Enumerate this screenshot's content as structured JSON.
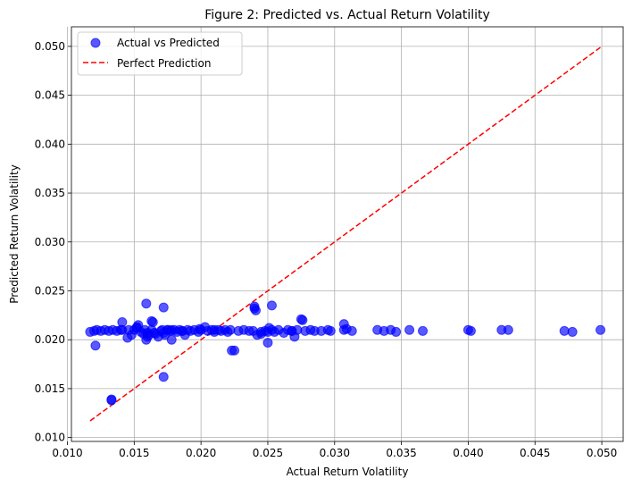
{
  "chart_data": {
    "type": "scatter",
    "title": "Figure 2: Predicted vs. Actual Return Volatility",
    "xlabel": "Actual Return Volatility",
    "ylabel": "Predicted Return Volatility",
    "xlim": [
      0.0103,
      0.0516
    ],
    "ylim": [
      0.0096,
      0.052
    ],
    "xticks": [
      "0.010",
      "0.015",
      "0.020",
      "0.025",
      "0.030",
      "0.035",
      "0.040",
      "0.045",
      "0.050"
    ],
    "yticks": [
      "0.010",
      "0.015",
      "0.020",
      "0.025",
      "0.030",
      "0.035",
      "0.040",
      "0.045",
      "0.050"
    ],
    "grid": true,
    "legend_position": "top-left",
    "series": [
      {
        "name": "Actual vs Predicted",
        "color": "#0000ff",
        "alpha": 0.65,
        "x": [
          0.0117,
          0.012,
          0.0122,
          0.0125,
          0.0128,
          0.0131,
          0.0134,
          0.0137,
          0.014,
          0.0121,
          0.0141,
          0.0133,
          0.0145,
          0.0146,
          0.0148,
          0.015,
          0.0152,
          0.0153,
          0.0155,
          0.0157,
          0.0158,
          0.0159,
          0.016,
          0.0161,
          0.0163,
          0.0164,
          0.0166,
          0.0168,
          0.017,
          0.0171,
          0.0172,
          0.0173,
          0.0175,
          0.0177,
          0.0178,
          0.018,
          0.0182,
          0.0184,
          0.0186,
          0.0188,
          0.019,
          0.0192,
          0.0195,
          0.0198,
          0.02,
          0.0203,
          0.0205,
          0.0208,
          0.021,
          0.0213,
          0.0215,
          0.0218,
          0.022,
          0.0222,
          0.0225,
          0.0228,
          0.0232,
          0.0236,
          0.0239,
          0.024,
          0.0241,
          0.0242,
          0.0245,
          0.0248,
          0.025,
          0.0251,
          0.0253,
          0.0255,
          0.0258,
          0.0262,
          0.0265,
          0.0268,
          0.027,
          0.0272,
          0.0275,
          0.0278,
          0.0282,
          0.0285,
          0.029,
          0.0295,
          0.0297,
          0.0307,
          0.0309,
          0.0313,
          0.0332,
          0.0337,
          0.0342,
          0.0346,
          0.0356,
          0.0366,
          0.04,
          0.0402,
          0.0425,
          0.043,
          0.0472,
          0.0478,
          0.0499,
          0.0159,
          0.0172,
          0.0163,
          0.024,
          0.0253,
          0.0276,
          0.0307,
          0.025,
          0.0223,
          0.0133,
          0.0172,
          0.0141,
          0.0152,
          0.0165,
          0.0175,
          0.0186,
          0.0199,
          0.021,
          0.0245,
          0.0268,
          0.0178,
          0.016
        ],
        "y": [
          0.0208,
          0.0209,
          0.021,
          0.0209,
          0.021,
          0.0209,
          0.021,
          0.0209,
          0.021,
          0.0194,
          0.0218,
          0.0139,
          0.0202,
          0.021,
          0.0205,
          0.021,
          0.0212,
          0.0215,
          0.0208,
          0.0206,
          0.021,
          0.02,
          0.0203,
          0.0205,
          0.021,
          0.0218,
          0.0206,
          0.0203,
          0.0209,
          0.021,
          0.0207,
          0.0205,
          0.021,
          0.0209,
          0.02,
          0.021,
          0.0208,
          0.021,
          0.0209,
          0.0205,
          0.021,
          0.0209,
          0.021,
          0.0208,
          0.021,
          0.0213,
          0.0209,
          0.021,
          0.0208,
          0.021,
          0.0209,
          0.021,
          0.0208,
          0.021,
          0.0189,
          0.0209,
          0.021,
          0.0209,
          0.0209,
          0.0232,
          0.023,
          0.0205,
          0.0208,
          0.0209,
          0.0197,
          0.0212,
          0.021,
          0.0208,
          0.021,
          0.0207,
          0.021,
          0.0209,
          0.0203,
          0.021,
          0.0221,
          0.0209,
          0.021,
          0.0209,
          0.0209,
          0.021,
          0.0209,
          0.0216,
          0.0211,
          0.0209,
          0.021,
          0.0209,
          0.021,
          0.0208,
          0.021,
          0.0209,
          0.021,
          0.0209,
          0.021,
          0.021,
          0.0209,
          0.0208,
          0.021,
          0.0237,
          0.0162,
          0.0219,
          0.0234,
          0.0235,
          0.022,
          0.021,
          0.0208,
          0.0189,
          0.0138,
          0.0233,
          0.021,
          0.0213,
          0.0207,
          0.021,
          0.0209,
          0.0211,
          0.021,
          0.0206,
          0.0209,
          0.021,
          0.0207
        ]
      },
      {
        "name": "Perfect Prediction",
        "color": "#ff0000",
        "style": "dashed",
        "x": [
          0.0117,
          0.0499
        ],
        "y": [
          0.0117,
          0.0499
        ]
      }
    ]
  }
}
